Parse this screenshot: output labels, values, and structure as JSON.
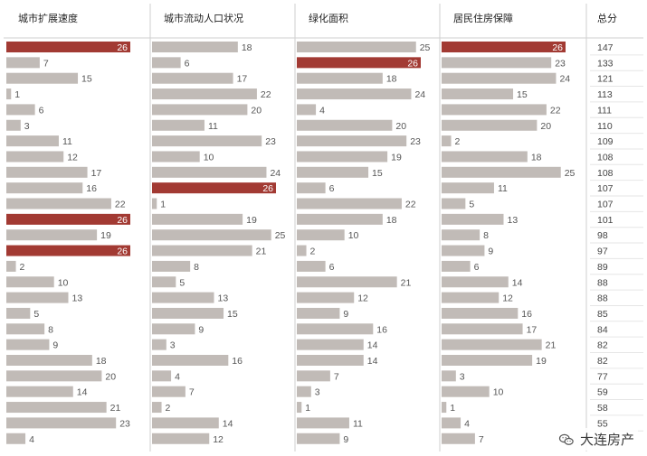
{
  "chart_data": {
    "type": "bar",
    "orientation": "horizontal",
    "grid": false,
    "columns": [
      "城市扩展速度",
      "城市流动人口状况",
      "绿化面积",
      "居民住房保障"
    ],
    "total_header": "总分",
    "highlight_value": 26,
    "xlim": [
      0,
      26
    ],
    "series": [
      {
        "values": [
          26,
          7,
          15,
          1,
          6,
          3,
          11,
          12,
          17,
          16,
          22,
          26,
          19,
          26,
          2,
          10,
          13,
          5,
          8,
          9,
          18,
          20,
          14,
          21,
          23,
          4
        ]
      },
      {
        "values": [
          18,
          6,
          17,
          22,
          20,
          11,
          23,
          10,
          24,
          26,
          1,
          19,
          25,
          21,
          8,
          5,
          13,
          15,
          9,
          3,
          16,
          4,
          7,
          2,
          14,
          12
        ]
      },
      {
        "values": [
          25,
          26,
          18,
          24,
          4,
          20,
          23,
          19,
          15,
          6,
          22,
          18,
          10,
          2,
          6,
          21,
          12,
          9,
          16,
          14,
          14,
          7,
          3,
          1,
          11,
          9
        ]
      },
      {
        "values": [
          26,
          23,
          24,
          15,
          22,
          20,
          2,
          18,
          25,
          11,
          5,
          13,
          8,
          9,
          6,
          14,
          12,
          16,
          17,
          21,
          19,
          3,
          10,
          1,
          4,
          7
        ]
      }
    ],
    "totals": [
      147,
      133,
      121,
      113,
      111,
      110,
      109,
      108,
      108,
      107,
      107,
      101,
      98,
      97,
      89,
      88,
      88,
      85,
      84,
      82,
      82,
      77,
      59,
      58,
      55,
      51
    ]
  },
  "colors": {
    "bar": "#c1bbb7",
    "highlight": "#a23a33",
    "separator": "#cfcfcf"
  },
  "watermark": {
    "icon": "wechat-logo-icon",
    "text": "大连房产"
  }
}
